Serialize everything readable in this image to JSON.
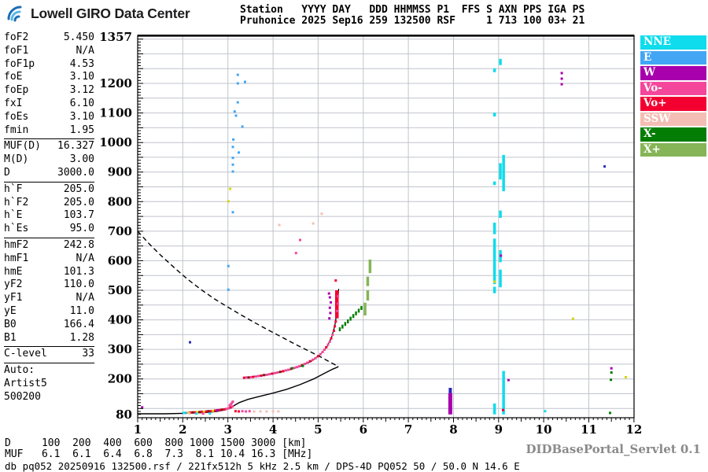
{
  "header": {
    "logo_text": "Lowell GIRO Data Center",
    "station_line1": "Station   YYYY DAY   DDD HHMMSS P1  FFS S AXN PPS IGA PS",
    "station_line2": "Pruhonice 2025 Sep16 259 132500 RSF     1 713 100 03+ 21"
  },
  "params": {
    "groups": [
      {
        "rows": [
          [
            "foF2",
            "5.450"
          ],
          [
            "foF1",
            "N/A"
          ],
          [
            "foF1p",
            "4.53"
          ],
          [
            "foE",
            "3.10"
          ],
          [
            "foEp",
            "3.12"
          ],
          [
            "fxI",
            "6.10"
          ],
          [
            "foEs",
            "3.10"
          ],
          [
            "fmin",
            "1.95"
          ]
        ]
      },
      {
        "rows": [
          [
            "MUF(D)",
            "16.327"
          ],
          [
            "M(D)",
            "3.00"
          ],
          [
            "D",
            "3000.0"
          ]
        ]
      },
      {
        "rows": [
          [
            "h`F",
            "205.0"
          ],
          [
            "h`F2",
            "205.0"
          ],
          [
            "h`E",
            "103.7"
          ],
          [
            "h`Es",
            "95.0"
          ]
        ]
      },
      {
        "rows": [
          [
            "hmF2",
            "242.8"
          ],
          [
            "hmF1",
            "N/A"
          ],
          [
            "hmE",
            "101.3"
          ],
          [
            "yF2",
            "110.0"
          ],
          [
            "yF1",
            "N/A"
          ],
          [
            "yE",
            "11.0"
          ],
          [
            "B0",
            "166.4"
          ],
          [
            "B1",
            "1.28"
          ]
        ]
      },
      {
        "rows": [
          [
            "C-level",
            "33"
          ]
        ]
      },
      {
        "rows": [
          [
            "Auto:",
            ""
          ],
          [
            "Artist5",
            ""
          ],
          [
            "500200",
            ""
          ]
        ]
      }
    ]
  },
  "legend": {
    "items": [
      {
        "label": "NNE",
        "color": "#0fdcec"
      },
      {
        "label": "E",
        "color": "#43a6f5"
      },
      {
        "label": "W",
        "color": "#a800ad"
      },
      {
        "label": "Vo-",
        "color": "#f4479c"
      },
      {
        "label": "Vo+",
        "color": "#f30031"
      },
      {
        "label": "SSW",
        "color": "#f4beb4"
      },
      {
        "label": "X-",
        "color": "#047d04"
      },
      {
        "label": "X+",
        "color": "#85b557"
      }
    ]
  },
  "footer": {
    "d_row": {
      "label": "D",
      "values": [
        "100",
        "200",
        "400",
        "600",
        "800",
        "1000",
        "1500",
        "3000"
      ],
      "unit": "[km]"
    },
    "muf_row": {
      "label": "MUF",
      "values": [
        "6.1",
        "6.1",
        "6.4",
        "6.8",
        "7.3",
        "8.1",
        "10.4",
        "16.3"
      ],
      "unit": "[MHz]"
    },
    "status": "db pq052 20250916 132500.rsf / 221fx512h 5 kHz 2.5 km / DPS-4D PQ052 50 / 50.0 N 14.6 E",
    "servlet": "DIDBasePortal_Servlet 0.1"
  },
  "chart_data": {
    "type": "scatter",
    "title": "Digisonde ionogram Pruhonice 2025-09-16 13:25:00",
    "x_axis": {
      "min": 1,
      "max": 12,
      "unit": "MHz",
      "ticks": [
        1,
        2,
        3,
        4,
        5,
        6,
        7,
        8,
        9,
        10,
        11,
        12
      ]
    },
    "y_axis": {
      "min": 80,
      "max": 1357,
      "unit": "km",
      "ticks": [
        1357,
        1200,
        1100,
        1000,
        900,
        800,
        700,
        600,
        500,
        400,
        300,
        200,
        80
      ]
    },
    "grid_color": "#c0c4cd",
    "palette": {
      "nne": "#0fdcec",
      "e": "#43a6f5",
      "w": "#a800ad",
      "vo-": "#f4479c",
      "vo+": "#f30031",
      "ssw": "#f4beb4",
      "x-": "#047d04",
      "x+": "#85b557",
      "yellow": "#d6d600",
      "navy": "#2a2ab8",
      "darkred": "#8b1515"
    },
    "curves": [
      {
        "name": "transmission-curve",
        "color": "#000000",
        "width": 1.4,
        "dash": "6 4",
        "pts": [
          [
            1.0,
            700
          ],
          [
            1.25,
            658
          ],
          [
            1.5,
            620
          ],
          [
            1.8,
            578
          ],
          [
            2.1,
            538
          ],
          [
            2.4,
            503
          ],
          [
            2.7,
            471
          ],
          [
            3.0,
            443
          ],
          [
            3.3,
            416
          ],
          [
            3.6,
            390
          ],
          [
            3.9,
            365
          ],
          [
            4.2,
            341
          ],
          [
            4.5,
            317
          ],
          [
            4.8,
            294
          ],
          [
            5.05,
            275
          ],
          [
            5.25,
            258
          ],
          [
            5.4,
            246
          ],
          [
            5.45,
            243
          ]
        ]
      },
      {
        "name": "true-height-profile",
        "color": "#000000",
        "width": 1.4,
        "pts": [
          [
            1.0,
            82
          ],
          [
            1.6,
            82
          ],
          [
            2.1,
            84
          ],
          [
            2.5,
            86.5
          ],
          [
            2.75,
            90
          ],
          [
            2.95,
            96
          ],
          [
            3.08,
            103
          ],
          [
            3.14,
            110
          ],
          [
            3.25,
            120
          ],
          [
            3.45,
            131
          ],
          [
            3.7,
            141
          ],
          [
            4.0,
            152
          ],
          [
            4.3,
            165
          ],
          [
            4.6,
            181
          ],
          [
            4.9,
            200
          ],
          [
            5.15,
            220
          ],
          [
            5.32,
            233
          ],
          [
            5.43,
            240
          ],
          [
            5.45,
            242.8
          ]
        ]
      },
      {
        "name": "fitted-trace",
        "color": "#000000",
        "width": 1.2,
        "pts": [
          [
            3.38,
            205
          ],
          [
            3.7,
            211
          ],
          [
            4.0,
            218
          ],
          [
            4.3,
            228
          ],
          [
            4.6,
            242
          ],
          [
            4.85,
            260
          ],
          [
            5.05,
            283
          ],
          [
            5.2,
            310
          ],
          [
            5.3,
            342
          ],
          [
            5.37,
            380
          ],
          [
            5.41,
            420
          ],
          [
            5.44,
            465
          ],
          [
            5.455,
            505
          ]
        ]
      }
    ],
    "columns": [
      {
        "name": "nne-column-8.9",
        "f": 8.91,
        "key": "nne",
        "w": 3.5,
        "segs": [
          [
            80,
            117
          ],
          [
            490,
            512
          ],
          [
            521,
            675
          ],
          [
            690,
            729
          ],
          [
            856,
            868
          ],
          [
            1088,
            1101
          ],
          [
            1238,
            1251
          ]
        ]
      },
      {
        "name": "nne-column-9.0",
        "f": 9.04,
        "key": "nne",
        "w": 3.5,
        "segs": [
          [
            510,
            570
          ],
          [
            595,
            636
          ],
          [
            745,
            770
          ],
          [
            875,
            930
          ],
          [
            1262,
            1283
          ]
        ]
      },
      {
        "name": "nne-column-9.1",
        "f": 9.11,
        "key": "nne",
        "w": 3.5,
        "segs": [
          [
            80,
            227
          ],
          [
            835,
            958
          ]
        ]
      },
      {
        "name": "otrace-top-red",
        "f": 5.415,
        "key": "vo+",
        "w": 4.5,
        "segs": [
          [
            405,
            500
          ]
        ]
      },
      {
        "name": "w-column-7.9",
        "f": 7.93,
        "key": "w",
        "w": 5,
        "segs": [
          [
            80,
            152
          ]
        ]
      },
      {
        "name": "w-column-tip",
        "f": 7.93,
        "key": "navy",
        "w": 4,
        "segs": [
          [
            152,
            170
          ]
        ]
      },
      {
        "name": "xplus-column-1",
        "f": 6.04,
        "key": "x+",
        "w": 3.5,
        "segs": [
          [
            415,
            458
          ]
        ]
      },
      {
        "name": "xplus-column-2",
        "f": 6.1,
        "key": "x+",
        "w": 3.5,
        "segs": [
          [
            465,
            500
          ],
          [
            514,
            546
          ]
        ]
      },
      {
        "name": "xplus-column-3",
        "f": 6.15,
        "key": "x+",
        "w": 3.5,
        "segs": [
          [
            558,
            604
          ]
        ]
      }
    ],
    "echoes": [
      [
        2.02,
        85,
        "nne"
      ],
      [
        2.07,
        85,
        "e"
      ],
      [
        2.12,
        86,
        "yellow"
      ],
      [
        2.17,
        86,
        "vo+"
      ],
      [
        2.22,
        87,
        "darkred"
      ],
      [
        2.27,
        87,
        "vo+"
      ],
      [
        2.32,
        88,
        "yellow"
      ],
      [
        2.37,
        88,
        "darkred"
      ],
      [
        2.42,
        89,
        "vo+"
      ],
      [
        2.47,
        89,
        "yellow"
      ],
      [
        2.52,
        90,
        "vo+"
      ],
      [
        2.57,
        91,
        "darkred"
      ],
      [
        2.62,
        91,
        "vo+"
      ],
      [
        2.67,
        92,
        "yellow"
      ],
      [
        2.72,
        93,
        "vo+"
      ],
      [
        2.77,
        94,
        "w"
      ],
      [
        2.82,
        95,
        "vo+"
      ],
      [
        2.87,
        96,
        "darkred"
      ],
      [
        2.92,
        97,
        "vo+"
      ],
      [
        2.97,
        99,
        "vo-"
      ],
      [
        3.02,
        101,
        "vo-"
      ],
      [
        3.06,
        104,
        "vo+"
      ],
      [
        3.1,
        107,
        "vo-"
      ],
      [
        3.04,
        111,
        "vo-"
      ],
      [
        3.07,
        115,
        "vo-"
      ],
      [
        3.09,
        119,
        "vo-"
      ],
      [
        3.11,
        123,
        "vo-"
      ],
      [
        2.15,
        83,
        "ssw"
      ],
      [
        2.3,
        83,
        "nne"
      ],
      [
        2.45,
        83,
        "vo-"
      ],
      [
        2.6,
        83,
        "nne"
      ],
      [
        3.17,
        91,
        "vo+"
      ],
      [
        3.24,
        90,
        "vo+"
      ],
      [
        3.32,
        91,
        "vo-"
      ],
      [
        3.4,
        90,
        "vo-"
      ],
      [
        3.48,
        91,
        "vo-"
      ],
      [
        3.58,
        90,
        "ssw"
      ],
      [
        3.72,
        90,
        "ssw"
      ],
      [
        3.86,
        90,
        "ssw"
      ],
      [
        4.0,
        90,
        "ssw"
      ],
      [
        4.12,
        90,
        "ssw"
      ],
      [
        3.36,
        204,
        "vo+"
      ],
      [
        3.41,
        205,
        "vo-"
      ],
      [
        3.46,
        205,
        "darkred"
      ],
      [
        3.51,
        206,
        "vo-"
      ],
      [
        3.56,
        207,
        "vo+"
      ],
      [
        3.62,
        208,
        "vo-"
      ],
      [
        3.68,
        210,
        "vo-"
      ],
      [
        3.74,
        211,
        "vo+"
      ],
      [
        3.8,
        213,
        "darkred"
      ],
      [
        3.86,
        214,
        "vo-"
      ],
      [
        3.92,
        216,
        "vo-"
      ],
      [
        3.98,
        218,
        "vo+"
      ],
      [
        4.04,
        220,
        "vo-"
      ],
      [
        4.1,
        222,
        "vo-"
      ],
      [
        4.16,
        224,
        "darkred"
      ],
      [
        4.22,
        226,
        "vo+"
      ],
      [
        4.28,
        229,
        "vo-"
      ],
      [
        4.34,
        231,
        "vo-"
      ],
      [
        4.4,
        234,
        "vo+"
      ],
      [
        4.46,
        237,
        "vo-"
      ],
      [
        4.52,
        240,
        "vo-"
      ],
      [
        4.58,
        243,
        "vo-"
      ],
      [
        4.64,
        247,
        "vo+"
      ],
      [
        4.7,
        251,
        "vo-"
      ],
      [
        4.76,
        255,
        "vo-"
      ],
      [
        4.82,
        260,
        "vo+"
      ],
      [
        4.88,
        265,
        "vo-"
      ],
      [
        4.94,
        270,
        "vo-"
      ],
      [
        5.0,
        277,
        "vo+"
      ],
      [
        5.05,
        284,
        "vo-"
      ],
      [
        5.1,
        291,
        "vo-"
      ],
      [
        5.14,
        299,
        "vo-"
      ],
      [
        5.18,
        307,
        "vo+"
      ],
      [
        5.22,
        316,
        "vo-"
      ],
      [
        5.26,
        326,
        "vo-"
      ],
      [
        5.29,
        337,
        "vo+"
      ],
      [
        5.32,
        349,
        "vo-"
      ],
      [
        5.35,
        363,
        "vo+"
      ],
      [
        5.37,
        378,
        "vo+"
      ],
      [
        5.39,
        394,
        "vo+"
      ],
      [
        5.42,
        430,
        "vo-"
      ],
      [
        5.44,
        455,
        "vo-"
      ],
      [
        5.44,
        480,
        "vo-"
      ],
      [
        5.25,
        405,
        "w"
      ],
      [
        5.27,
        423,
        "w"
      ],
      [
        5.26,
        441,
        "w"
      ],
      [
        5.28,
        459,
        "w"
      ],
      [
        5.26,
        476,
        "w"
      ],
      [
        5.24,
        489,
        "w"
      ],
      [
        5.48,
        368,
        "x-",
        2.5,
        5
      ],
      [
        5.54,
        377,
        "x-",
        2.5,
        5
      ],
      [
        5.6,
        386,
        "x-",
        2.5,
        5
      ],
      [
        5.66,
        395,
        "x-",
        2.5,
        5
      ],
      [
        5.72,
        404,
        "x-",
        2.5,
        5
      ],
      [
        5.78,
        413,
        "x-",
        2.5,
        5
      ],
      [
        5.84,
        422,
        "x-",
        2.5,
        5
      ],
      [
        5.9,
        431,
        "x-",
        2.5,
        5
      ],
      [
        5.96,
        440,
        "x-",
        2.5,
        5
      ],
      [
        3.22,
        1229,
        "e"
      ],
      [
        3.22,
        1200,
        "e"
      ],
      [
        3.38,
        1205,
        "e"
      ],
      [
        3.22,
        1136,
        "e"
      ],
      [
        3.15,
        1105,
        "e"
      ],
      [
        3.18,
        1091,
        "e"
      ],
      [
        3.32,
        1054,
        "e"
      ],
      [
        3.12,
        1010,
        "e"
      ],
      [
        3.11,
        985,
        "e"
      ],
      [
        3.24,
        966,
        "e"
      ],
      [
        3.11,
        948,
        "e"
      ],
      [
        3.11,
        925,
        "e"
      ],
      [
        3.11,
        902,
        "e"
      ],
      [
        3.11,
        764,
        "e"
      ],
      [
        3.01,
        582,
        "e"
      ],
      [
        3.01,
        502,
        "e"
      ],
      [
        3.05,
        843,
        "yellow"
      ],
      [
        3.01,
        801,
        "yellow"
      ],
      [
        10.65,
        404,
        "yellow"
      ],
      [
        11.82,
        206,
        "yellow"
      ],
      [
        8.91,
        529,
        "yellow"
      ],
      [
        4.6,
        670,
        "vo-"
      ],
      [
        4.51,
        626,
        "vo-"
      ],
      [
        5.08,
        759,
        "ssw"
      ],
      [
        4.89,
        726,
        "ssw"
      ],
      [
        4.14,
        721,
        "ssw"
      ],
      [
        5.39,
        533,
        "vo+"
      ],
      [
        9.1,
        95,
        "vo+"
      ],
      [
        11.35,
        919,
        "navy"
      ],
      [
        2.16,
        324,
        "navy"
      ],
      [
        11.5,
        236,
        "w"
      ],
      [
        1.1,
        104,
        "w"
      ],
      [
        9.22,
        196,
        "w"
      ],
      [
        9.05,
        617,
        "w"
      ],
      [
        10.4,
        1235,
        "w"
      ],
      [
        10.4,
        1216,
        "w"
      ],
      [
        10.4,
        1197,
        "w"
      ],
      [
        11.5,
        222,
        "x-"
      ],
      [
        11.49,
        197,
        "x-"
      ],
      [
        11.47,
        85,
        "x-"
      ],
      [
        4.42,
        236,
        "x-"
      ],
      [
        4.66,
        244,
        "x-"
      ],
      [
        10.03,
        91,
        "nne"
      ]
    ]
  }
}
